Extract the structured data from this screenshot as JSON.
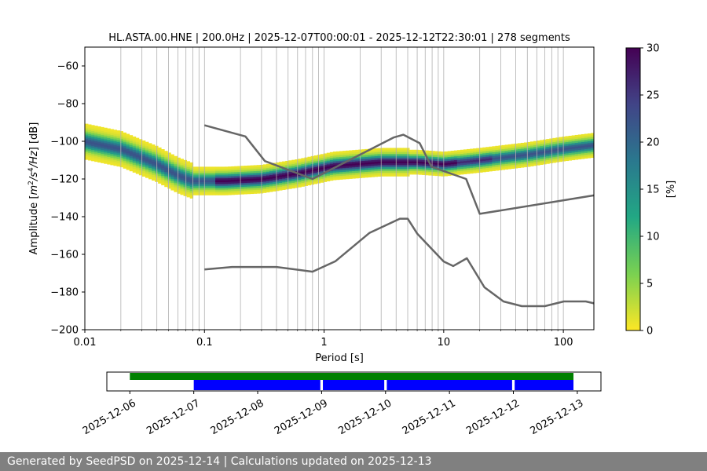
{
  "footer": {
    "text": "Generated by SeedPSD on 2025-12-14 | Calculations updated on 2025-12-13"
  },
  "chart_data": [
    {
      "type": "heatmap",
      "title": "HL.ASTA.00.HNE | 200.0Hz | 2025-12-07T00:00:01 - 2025-12-12T22:30:01 | 278 segments",
      "xlabel": "Period [s]",
      "ylabel_parts": [
        "Amplitude [",
        "m",
        "2",
        "/s",
        "4",
        "/Hz",
        "] [dB]"
      ],
      "x_scale": "log",
      "xlim": [
        0.01,
        180
      ],
      "ylim": [
        -200,
        -50
      ],
      "x_ticks": [
        0.01,
        0.1,
        1,
        10,
        100
      ],
      "x_tick_labels": [
        "0.01",
        "0.1",
        "1",
        "10",
        "100"
      ],
      "y_ticks": [
        -200,
        -180,
        -160,
        -140,
        -120,
        -100,
        -80,
        -60
      ],
      "y_tick_labels": [
        "−200",
        "−180",
        "−160",
        "−140",
        "−120",
        "−100",
        "−80",
        "−60"
      ],
      "grid": "vertical lines at log-period minor ticks",
      "colorbar": {
        "label": "[%]",
        "min": 0,
        "max": 30,
        "ticks": [
          0,
          5,
          10,
          15,
          20,
          25,
          30
        ],
        "tick_labels": [
          "0",
          "5",
          "10",
          "15",
          "20",
          "25",
          "30"
        ],
        "colormap": "viridis_r",
        "stops": [
          "#fde725",
          "#7ad151",
          "#22a884",
          "#2a788e",
          "#414487",
          "#440154"
        ]
      },
      "mode_curve": [
        {
          "period": 0.01,
          "db": -100
        },
        {
          "period": 0.02,
          "db": -104
        },
        {
          "period": 0.04,
          "db": -112
        },
        {
          "period": 0.06,
          "db": -118
        },
        {
          "period": 0.08,
          "db": -121
        },
        {
          "period": 0.15,
          "db": -121
        },
        {
          "period": 0.3,
          "db": -120
        },
        {
          "period": 0.6,
          "db": -117
        },
        {
          "period": 1.2,
          "db": -113
        },
        {
          "period": 3,
          "db": -111
        },
        {
          "period": 6,
          "db": -111
        },
        {
          "period": 10,
          "db": -112
        },
        {
          "period": 20,
          "db": -110
        },
        {
          "period": 50,
          "db": -107
        },
        {
          "period": 100,
          "db": -104
        },
        {
          "period": 180,
          "db": -102
        }
      ],
      "noise_model_high": [
        {
          "period": 0.1,
          "db": -91.5
        },
        {
          "period": 0.22,
          "db": -97.4
        },
        {
          "period": 0.32,
          "db": -110.5
        },
        {
          "period": 0.8,
          "db": -120
        },
        {
          "period": 3.8,
          "db": -98
        },
        {
          "period": 4.6,
          "db": -96.5
        },
        {
          "period": 6.3,
          "db": -101
        },
        {
          "period": 7.9,
          "db": -113.5
        },
        {
          "period": 15.4,
          "db": -120
        },
        {
          "period": 20,
          "db": -138.5
        },
        {
          "period": 180,
          "db": -128.7
        }
      ],
      "noise_model_low": [
        {
          "period": 0.1,
          "db": -168
        },
        {
          "period": 0.17,
          "db": -166.7
        },
        {
          "period": 0.4,
          "db": -166.7
        },
        {
          "period": 0.8,
          "db": -169.2
        },
        {
          "period": 1.24,
          "db": -163.7
        },
        {
          "period": 2.4,
          "db": -148.6
        },
        {
          "period": 4.3,
          "db": -141.1
        },
        {
          "period": 5,
          "db": -141.1
        },
        {
          "period": 6,
          "db": -149
        },
        {
          "period": 10,
          "db": -163.8
        },
        {
          "period": 12,
          "db": -166.2
        },
        {
          "period": 15.6,
          "db": -162.1
        },
        {
          "period": 21.9,
          "db": -177.5
        },
        {
          "period": 31.6,
          "db": -185
        },
        {
          "period": 45,
          "db": -187.5
        },
        {
          "period": 70,
          "db": -187.5
        },
        {
          "period": 101,
          "db": -185
        },
        {
          "period": 154,
          "db": -185
        },
        {
          "period": 180,
          "db": -186
        }
      ]
    },
    {
      "type": "timeline",
      "x_tick_labels": [
        "2025-12-06",
        "2025-12-07",
        "2025-12-08",
        "2025-12-09",
        "2025-12-10",
        "2025-12-11",
        "2025-12-12",
        "2025-12-13"
      ],
      "x_range_days": [
        5.64,
        13.37
      ],
      "data_available": {
        "color": "#008000",
        "start_day": 6.0,
        "end_day": 12.94
      },
      "psd_coverage": {
        "color": "#0000ff",
        "segments": [
          [
            7.0,
            8.98
          ],
          [
            9.02,
            9.98
          ],
          [
            10.02,
            11.98
          ],
          [
            12.02,
            12.94
          ]
        ]
      }
    }
  ]
}
